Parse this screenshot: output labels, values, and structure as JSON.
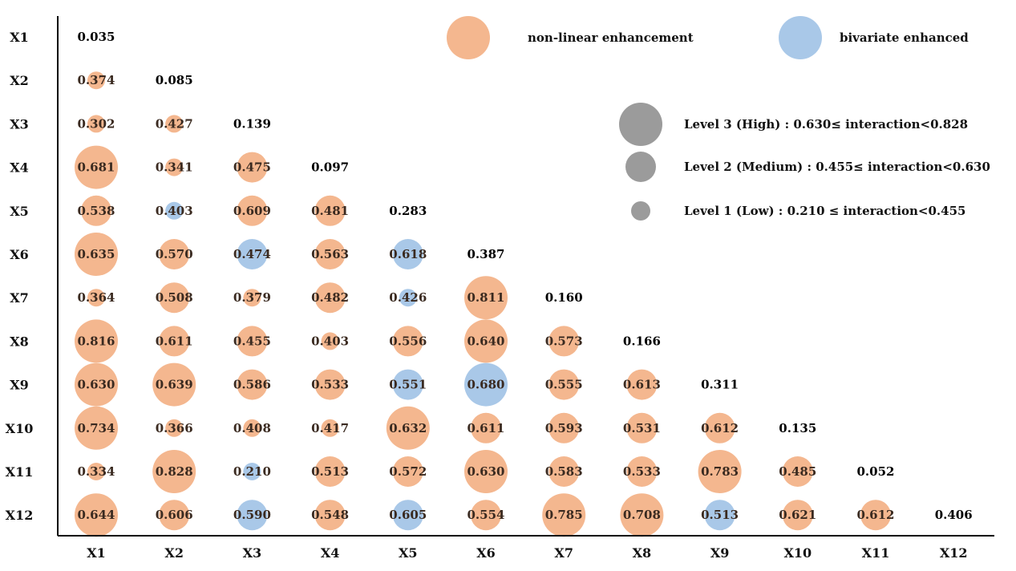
{
  "chart_data": {
    "type": "bubble-matrix",
    "title": "",
    "row_labels": [
      "X1",
      "X2",
      "X3",
      "X4",
      "X5",
      "X6",
      "X7",
      "X8",
      "X9",
      "X10",
      "X11",
      "X12"
    ],
    "col_labels": [
      "X1",
      "X2",
      "X3",
      "X4",
      "X5",
      "X6",
      "X7",
      "X8",
      "X9",
      "X10",
      "X11",
      "X12"
    ],
    "colors": {
      "nonlinear": "#f4b78f",
      "bivariate": "#a9c8e8",
      "level": "#9b9b9b"
    },
    "legend_types": [
      {
        "key": "nonlinear",
        "label": "non-linear enhancement"
      },
      {
        "key": "bivariate",
        "label": "bivariate enhanced"
      }
    ],
    "legend_levels": [
      {
        "level": 3,
        "label": "Level 3 (High) : 0.630≤ interaction<0.828"
      },
      {
        "level": 2,
        "label": "Level 2 (Medium) : 0.455≤ interaction<0.630"
      },
      {
        "level": 1,
        "label": "Level 1 (Low) : 0.210 ≤ interaction<0.455"
      }
    ],
    "cells": [
      {
        "r": 0,
        "c": 0,
        "v": "0.035",
        "t": "diag"
      },
      {
        "r": 1,
        "c": 0,
        "v": "0.374",
        "t": "n"
      },
      {
        "r": 1,
        "c": 1,
        "v": "0.085",
        "t": "diag"
      },
      {
        "r": 2,
        "c": 0,
        "v": "0.302",
        "t": "n"
      },
      {
        "r": 2,
        "c": 1,
        "v": "0.427",
        "t": "n"
      },
      {
        "r": 2,
        "c": 2,
        "v": "0.139",
        "t": "diag"
      },
      {
        "r": 3,
        "c": 0,
        "v": "0.681",
        "t": "n"
      },
      {
        "r": 3,
        "c": 1,
        "v": "0.341",
        "t": "n"
      },
      {
        "r": 3,
        "c": 2,
        "v": "0.475",
        "t": "n"
      },
      {
        "r": 3,
        "c": 3,
        "v": "0.097",
        "t": "diag"
      },
      {
        "r": 4,
        "c": 0,
        "v": "0.538",
        "t": "n"
      },
      {
        "r": 4,
        "c": 1,
        "v": "0.403",
        "t": "b"
      },
      {
        "r": 4,
        "c": 2,
        "v": "0.609",
        "t": "n"
      },
      {
        "r": 4,
        "c": 3,
        "v": "0.481",
        "t": "n"
      },
      {
        "r": 4,
        "c": 4,
        "v": "0.283",
        "t": "diag"
      },
      {
        "r": 5,
        "c": 0,
        "v": "0.635",
        "t": "n"
      },
      {
        "r": 5,
        "c": 1,
        "v": "0.570",
        "t": "n"
      },
      {
        "r": 5,
        "c": 2,
        "v": "0.474",
        "t": "b"
      },
      {
        "r": 5,
        "c": 3,
        "v": "0.563",
        "t": "n"
      },
      {
        "r": 5,
        "c": 4,
        "v": "0.618",
        "t": "b"
      },
      {
        "r": 5,
        "c": 5,
        "v": "0.387",
        "t": "diag"
      },
      {
        "r": 6,
        "c": 0,
        "v": "0.364",
        "t": "n"
      },
      {
        "r": 6,
        "c": 1,
        "v": "0.508",
        "t": "n"
      },
      {
        "r": 6,
        "c": 2,
        "v": "0.379",
        "t": "n"
      },
      {
        "r": 6,
        "c": 3,
        "v": "0.482",
        "t": "n"
      },
      {
        "r": 6,
        "c": 4,
        "v": "0.426",
        "t": "b"
      },
      {
        "r": 6,
        "c": 5,
        "v": "0.811",
        "t": "n"
      },
      {
        "r": 6,
        "c": 6,
        "v": "0.160",
        "t": "diag"
      },
      {
        "r": 7,
        "c": 0,
        "v": "0.816",
        "t": "n"
      },
      {
        "r": 7,
        "c": 1,
        "v": "0.611",
        "t": "n"
      },
      {
        "r": 7,
        "c": 2,
        "v": "0.455",
        "t": "n"
      },
      {
        "r": 7,
        "c": 3,
        "v": "0.403",
        "t": "n"
      },
      {
        "r": 7,
        "c": 4,
        "v": "0.556",
        "t": "n"
      },
      {
        "r": 7,
        "c": 5,
        "v": "0.640",
        "t": "n"
      },
      {
        "r": 7,
        "c": 6,
        "v": "0.573",
        "t": "n"
      },
      {
        "r": 7,
        "c": 7,
        "v": "0.166",
        "t": "diag"
      },
      {
        "r": 8,
        "c": 0,
        "v": "0.630",
        "t": "n"
      },
      {
        "r": 8,
        "c": 1,
        "v": "0.639",
        "t": "n"
      },
      {
        "r": 8,
        "c": 2,
        "v": "0.586",
        "t": "n"
      },
      {
        "r": 8,
        "c": 3,
        "v": "0.533",
        "t": "n"
      },
      {
        "r": 8,
        "c": 4,
        "v": "0.551",
        "t": "b"
      },
      {
        "r": 8,
        "c": 5,
        "v": "0.680",
        "t": "b"
      },
      {
        "r": 8,
        "c": 6,
        "v": "0.555",
        "t": "n"
      },
      {
        "r": 8,
        "c": 7,
        "v": "0.613",
        "t": "n"
      },
      {
        "r": 8,
        "c": 8,
        "v": "0.311",
        "t": "diag"
      },
      {
        "r": 9,
        "c": 0,
        "v": "0.734",
        "t": "n"
      },
      {
        "r": 9,
        "c": 1,
        "v": "0.366",
        "t": "n"
      },
      {
        "r": 9,
        "c": 2,
        "v": "0.408",
        "t": "n"
      },
      {
        "r": 9,
        "c": 3,
        "v": "0.417",
        "t": "n"
      },
      {
        "r": 9,
        "c": 4,
        "v": "0.632",
        "t": "n"
      },
      {
        "r": 9,
        "c": 5,
        "v": "0.611",
        "t": "n"
      },
      {
        "r": 9,
        "c": 6,
        "v": "0.593",
        "t": "n"
      },
      {
        "r": 9,
        "c": 7,
        "v": "0.531",
        "t": "n"
      },
      {
        "r": 9,
        "c": 8,
        "v": "0.612",
        "t": "n"
      },
      {
        "r": 9,
        "c": 9,
        "v": "0.135",
        "t": "diag"
      },
      {
        "r": 10,
        "c": 0,
        "v": "0.334",
        "t": "n"
      },
      {
        "r": 10,
        "c": 1,
        "v": "0.828",
        "t": "n"
      },
      {
        "r": 10,
        "c": 2,
        "v": "0.210",
        "t": "b"
      },
      {
        "r": 10,
        "c": 3,
        "v": "0.513",
        "t": "n"
      },
      {
        "r": 10,
        "c": 4,
        "v": "0.572",
        "t": "n"
      },
      {
        "r": 10,
        "c": 5,
        "v": "0.630",
        "t": "n"
      },
      {
        "r": 10,
        "c": 6,
        "v": "0.583",
        "t": "n"
      },
      {
        "r": 10,
        "c": 7,
        "v": "0.533",
        "t": "n"
      },
      {
        "r": 10,
        "c": 8,
        "v": "0.783",
        "t": "n"
      },
      {
        "r": 10,
        "c": 9,
        "v": "0.485",
        "t": "n"
      },
      {
        "r": 10,
        "c": 10,
        "v": "0.052",
        "t": "diag"
      },
      {
        "r": 11,
        "c": 0,
        "v": "0.644",
        "t": "n"
      },
      {
        "r": 11,
        "c": 1,
        "v": "0.606",
        "t": "n"
      },
      {
        "r": 11,
        "c": 2,
        "v": "0.590",
        "t": "b"
      },
      {
        "r": 11,
        "c": 3,
        "v": "0.548",
        "t": "n"
      },
      {
        "r": 11,
        "c": 4,
        "v": "0.605",
        "t": "b"
      },
      {
        "r": 11,
        "c": 5,
        "v": "0.554",
        "t": "n"
      },
      {
        "r": 11,
        "c": 6,
        "v": "0.785",
        "t": "n"
      },
      {
        "r": 11,
        "c": 7,
        "v": "0.708",
        "t": "n"
      },
      {
        "r": 11,
        "c": 8,
        "v": "0.513",
        "t": "b"
      },
      {
        "r": 11,
        "c": 9,
        "v": "0.621",
        "t": "n"
      },
      {
        "r": 11,
        "c": 10,
        "v": "0.612",
        "t": "n"
      },
      {
        "r": 11,
        "c": 11,
        "v": "0.406",
        "t": "diag"
      }
    ]
  }
}
